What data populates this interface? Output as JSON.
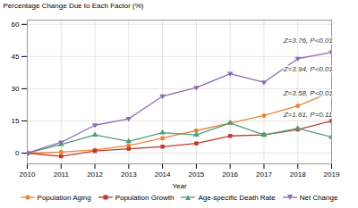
{
  "chart_data": {
    "type": "line",
    "x": [
      2010,
      2011,
      2012,
      2013,
      2014,
      2015,
      2016,
      2017,
      2018,
      2019
    ],
    "xlabel": "Year",
    "ylabel": "Percentage Change Due to Each Factor (%)",
    "xlim": [
      2010,
      2019
    ],
    "xticks": [
      2010,
      2011,
      2012,
      2013,
      2014,
      2015,
      2016,
      2017,
      2018,
      2019
    ],
    "ylim": [
      -5,
      62
    ],
    "yticks": [
      0,
      15,
      30,
      45,
      60
    ],
    "grid": true,
    "legend": "bottom",
    "series": [
      {
        "name": "Population Aging",
        "color": "#E8873A",
        "marker": "circle",
        "values": [
          0,
          0.5,
          1.5,
          3.5,
          7.0,
          10.5,
          14.0,
          17.5,
          22.0,
          28.5
        ]
      },
      {
        "name": "Population Growth",
        "color": "#C0392B",
        "marker": "square",
        "values": [
          0,
          -1.5,
          1.0,
          2.0,
          3.0,
          4.5,
          8.0,
          8.5,
          11.0,
          15.0
        ]
      },
      {
        "name": "Age-specific Death Rate",
        "color": "#4E9F7D",
        "marker": "triangle-up",
        "values": [
          0,
          4.0,
          8.5,
          5.5,
          9.5,
          8.5,
          14.0,
          8.5,
          11.5,
          7.5
        ]
      },
      {
        "name": "Net Change",
        "color": "#8B6BB1",
        "marker": "triangle-down",
        "values": [
          0,
          5.0,
          13.0,
          16.0,
          26.5,
          30.5,
          37.0,
          33.0,
          44.0,
          47.0
        ]
      }
    ],
    "annotations": [
      {
        "text": "Z=3.76, P<0.01",
        "x": 2017.55,
        "y": 51.0
      },
      {
        "text": "Z=3.94, P<0.01",
        "x": 2017.55,
        "y": 37.5
      },
      {
        "text": "Z=3.58, P<0.01",
        "x": 2017.55,
        "y": 26.5
      },
      {
        "text": "Z=1.61, P=0.11",
        "x": 2017.55,
        "y": 16.5
      }
    ]
  }
}
